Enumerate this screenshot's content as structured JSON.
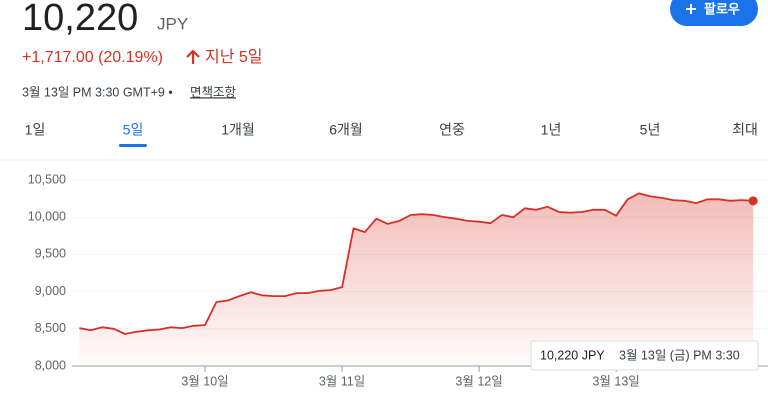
{
  "header": {
    "price": "10,220",
    "currency": "JPY",
    "change": "+1,717.00 (20.19%)",
    "period": "지난 5일",
    "timestamp": "3월 13일 PM 3:30 GMT+9 •",
    "disclaimer": "면책조항",
    "follow": "팔로우"
  },
  "tabs": {
    "items": [
      "1일",
      "5일",
      "1개월",
      "6개월",
      "연중",
      "1년",
      "5년",
      "최대"
    ],
    "selected": 1
  },
  "chart_data": {
    "type": "line",
    "color": "#d93025",
    "categories": [
      null,
      null,
      null,
      null,
      null,
      null,
      null,
      null,
      null,
      null,
      null,
      "3월 10일",
      null,
      null,
      null,
      null,
      null,
      null,
      null,
      null,
      null,
      null,
      null,
      "3월 11일",
      null,
      null,
      null,
      null,
      null,
      null,
      null,
      null,
      null,
      null,
      null,
      "3월 12일",
      null,
      null,
      null,
      null,
      null,
      null,
      null,
      null,
      null,
      null,
      null,
      "3월 13일",
      null,
      null,
      null,
      null,
      null,
      null,
      null,
      null,
      null,
      null,
      null,
      null
    ],
    "values": [
      8510,
      8480,
      8520,
      8500,
      8430,
      8460,
      8480,
      8490,
      8520,
      8510,
      8540,
      8550,
      8860,
      8880,
      8940,
      8990,
      8950,
      8940,
      8940,
      8980,
      8980,
      9010,
      9020,
      9060,
      9850,
      9800,
      9980,
      9910,
      9950,
      10030,
      10040,
      10030,
      10000,
      9980,
      9950,
      9940,
      9920,
      10030,
      10000,
      10120,
      10100,
      10140,
      10070,
      10060,
      10070,
      10100,
      10100,
      10020,
      10240,
      10320,
      10280,
      10260,
      10230,
      10220,
      10190,
      10240,
      10240,
      10220,
      10230,
      10220
    ],
    "ylim": [
      8000,
      10500
    ],
    "yticks": [
      {
        "value": 8000,
        "label": "8,000"
      },
      {
        "value": 8500,
        "label": "8,500"
      },
      {
        "value": 9000,
        "label": "9,000"
      },
      {
        "value": 9500,
        "label": "9,500"
      },
      {
        "value": 10000,
        "label": "10,000"
      },
      {
        "value": 10500,
        "label": "10,500"
      }
    ],
    "grid": true
  },
  "tooltip": {
    "value": "10,220 JPY",
    "time": "3월 13일 (금) PM 3:30"
  }
}
